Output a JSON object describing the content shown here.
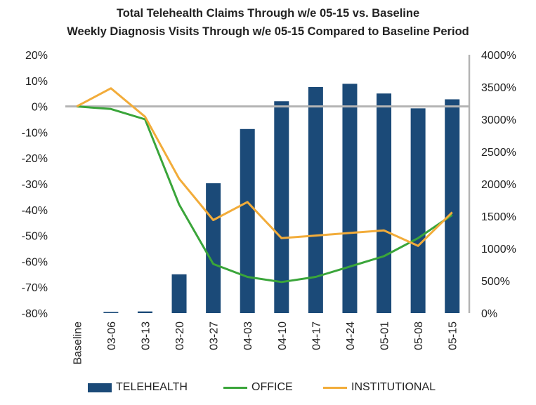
{
  "chart_data": {
    "type": "bar+line",
    "title": "Total Telehealth Claims Through w/e 05-15 vs. Baseline",
    "subtitle": "Weekly Diagnosis Visits Through w/e 05-15 Compared to Baseline Period",
    "categories": [
      "Baseline",
      "03-06",
      "03-13",
      "03-20",
      "03-27",
      "04-03",
      "04-10",
      "04-17",
      "04-24",
      "05-01",
      "05-08",
      "05-15"
    ],
    "left_axis": {
      "ylim": [
        -80,
        20
      ],
      "ticks": [
        "20%",
        "10%",
        "0%",
        "-10%",
        "-20%",
        "-30%",
        "-40%",
        "-50%",
        "-60%",
        "-70%",
        "-80%"
      ]
    },
    "right_axis": {
      "ylim": [
        0,
        4000
      ],
      "ticks": [
        "4000%",
        "3500%",
        "3000%",
        "2500%",
        "2000%",
        "1500%",
        "1000%",
        "500%",
        "0%"
      ]
    },
    "series": [
      {
        "name": "TELEHEALTH",
        "kind": "bar",
        "axis": "right",
        "color": "#1b4a78",
        "values": [
          0,
          10,
          25,
          600,
          2010,
          2850,
          3280,
          3500,
          3550,
          3400,
          3170,
          3310
        ]
      },
      {
        "name": "OFFICE",
        "kind": "line",
        "axis": "left",
        "color": "#3aa53a",
        "values": [
          0,
          -1,
          -5,
          -38,
          -61,
          -66,
          -68,
          -66,
          -62,
          -58,
          -51,
          -42
        ]
      },
      {
        "name": "INSTITUTIONAL",
        "kind": "line",
        "axis": "left",
        "color": "#f2ac3a",
        "values": [
          0,
          7,
          -4,
          -28,
          -44,
          -37,
          -51,
          -50,
          -49,
          -48,
          -54,
          -41
        ]
      }
    ],
    "zero_line_color": "#b4b4b4",
    "legend_position": "bottom",
    "grid": false
  }
}
